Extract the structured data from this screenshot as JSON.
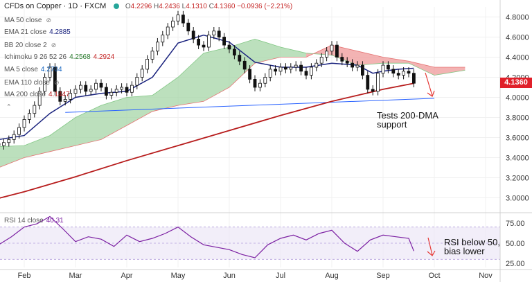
{
  "header": {
    "title": "CFDs on Copper · 1D · FXCM",
    "open_label": "O",
    "open": "4.2296",
    "high_label": "H",
    "high": "4.2436",
    "low_label": "L",
    "low": "4.1310",
    "close_label": "C",
    "close": "4.1360",
    "change": "−0.0936 (−2.21%)"
  },
  "indicators": [
    {
      "label": "MA 50 close",
      "value": "",
      "hidden": true,
      "color": "#9e9e9e"
    },
    {
      "label": "EMA 21 close",
      "value": "4.2885",
      "color": "#1a237e"
    },
    {
      "label": "BB 20 close 2",
      "value": "",
      "hidden": true,
      "color": "#9e9e9e"
    },
    {
      "label": "Ichimoku 9 26 52 26",
      "value": "4.2568",
      "value2": "4.2924",
      "color": "#2e7d32",
      "color2": "#c62828"
    },
    {
      "label": "MA 5 close",
      "value": "4.2704",
      "color": "#1565c0"
    },
    {
      "label": "EMA 110 close",
      "value": "",
      "hidden": true,
      "color": "#9e9e9e"
    },
    {
      "label": "MA 200 close",
      "value": "4.1447",
      "color": "#b71c1c"
    }
  ],
  "rsi_legend": {
    "label": "RSI 14 close",
    "value": "40.31",
    "color": "#7b1fa2"
  },
  "price_tag": "4.1360",
  "annotations": {
    "tests_line1": "Tests 200-DMA",
    "tests_line2": "support",
    "rsi_line1": "RSI below 50,",
    "rsi_line2": "bias lower"
  },
  "colors": {
    "up": "#26a69a",
    "down": "#ef5350",
    "candle_body": "#111111",
    "ma200": "#b71c1c",
    "ema21": "#1a237e",
    "trendline": "#2962ff",
    "cloud_bull": "#a5d6a7",
    "cloud_bear": "#ef9a9a",
    "rsi": "#7b1fa2",
    "rsi_band": "#ede7f6",
    "arrow": "#e53935",
    "price_tag": "#e0202a"
  },
  "chart_data": {
    "type": "line",
    "title": "CFDs on Copper · 1D · FXCM",
    "y_axis": {
      "ticks": [
        3.0,
        3.2,
        3.4,
        3.6,
        3.8,
        4.0,
        4.2,
        4.4,
        4.6,
        4.8
      ],
      "range": [
        2.9,
        4.9
      ]
    },
    "x_axis": {
      "labels": [
        "Feb",
        "Mar",
        "Apr",
        "May",
        "Jun",
        "Jul",
        "Aug",
        "Sep",
        "Oct",
        "Nov"
      ]
    },
    "x_positions_months": [
      1,
      2,
      3,
      4,
      5,
      6,
      7,
      8,
      9,
      10
    ],
    "series": [
      {
        "name": "Close",
        "x": [
          0.0,
          0.1,
          0.2,
          0.3,
          0.4,
          0.5,
          0.6,
          0.7,
          0.8,
          0.9,
          1.0,
          1.1,
          1.2,
          1.3,
          1.4,
          1.5,
          1.6,
          1.7,
          1.8,
          1.9,
          2.0,
          2.1,
          2.2,
          2.3,
          2.4,
          2.5,
          2.6,
          2.7,
          2.8,
          2.9,
          3.0,
          3.1,
          3.2,
          3.3,
          3.4,
          3.5,
          3.6,
          3.7,
          3.8,
          3.9,
          4.0,
          4.1,
          4.2,
          4.3,
          4.4,
          4.5,
          4.6,
          4.7,
          4.8,
          4.9,
          5.0,
          5.1,
          5.2,
          5.3,
          5.4,
          5.5,
          5.6,
          5.7,
          5.8,
          5.9,
          6.0,
          6.1,
          6.2,
          6.3,
          6.4,
          6.5,
          6.6,
          6.7,
          6.8,
          6.9,
          7.0,
          7.1,
          7.2,
          7.3,
          7.4,
          7.5,
          7.6,
          7.7,
          7.8,
          7.9,
          8.0,
          8.1,
          8.2,
          8.3,
          8.4,
          8.5,
          8.6
        ],
        "y": [
          3.62,
          3.64,
          3.6,
          3.56,
          3.54,
          3.52,
          3.55,
          3.58,
          3.63,
          3.7,
          3.78,
          3.84,
          3.92,
          4.06,
          4.2,
          4.3,
          4.06,
          3.96,
          3.98,
          4.04,
          4.08,
          4.12,
          4.06,
          4.08,
          4.14,
          4.1,
          4.02,
          4.05,
          4.08,
          4.1,
          4.05,
          4.12,
          4.2,
          4.28,
          4.38,
          4.46,
          4.55,
          4.62,
          4.7,
          4.76,
          4.82,
          4.74,
          4.66,
          4.58,
          4.52,
          4.5,
          4.62,
          4.66,
          4.6,
          4.52,
          4.48,
          4.42,
          4.36,
          4.28,
          4.18,
          4.1,
          4.14,
          4.2,
          4.28,
          4.26,
          4.3,
          4.28,
          4.3,
          4.32,
          4.26,
          4.22,
          4.3,
          4.34,
          4.4,
          4.46,
          4.52,
          4.4,
          4.36,
          4.34,
          4.3,
          4.32,
          4.22,
          4.08,
          4.06,
          4.24,
          4.32,
          4.28,
          4.24,
          4.22,
          4.26,
          4.24,
          4.14
        ]
      },
      {
        "name": "EMA 21",
        "x": [
          0.0,
          0.5,
          1.0,
          1.5,
          2.0,
          2.5,
          3.0,
          3.5,
          4.0,
          4.5,
          5.0,
          5.5,
          6.0,
          6.5,
          7.0,
          7.5,
          7.8,
          8.0,
          8.3,
          8.6
        ],
        "y": [
          3.62,
          3.58,
          3.62,
          3.84,
          4.0,
          4.04,
          4.06,
          4.2,
          4.54,
          4.62,
          4.55,
          4.35,
          4.3,
          4.3,
          4.34,
          4.32,
          4.24,
          4.26,
          4.28,
          4.29
        ]
      },
      {
        "name": "MA 200",
        "x": [
          0.0,
          1.0,
          2.0,
          3.0,
          4.0,
          5.0,
          6.0,
          7.0,
          7.5,
          8.0,
          8.6
        ],
        "y": [
          2.93,
          3.06,
          3.21,
          3.37,
          3.52,
          3.67,
          3.82,
          3.96,
          4.02,
          4.08,
          4.14
        ]
      },
      {
        "name": "Trendline",
        "x": [
          1.8,
          9.0
        ],
        "y": [
          3.85,
          3.99
        ]
      },
      {
        "name": "Senkou A",
        "x": [
          0.0,
          1.0,
          1.5,
          2.0,
          2.5,
          3.0,
          3.5,
          4.0,
          4.5,
          5.0,
          5.5,
          6.0,
          6.5,
          7.0,
          7.5,
          8.0,
          8.5,
          9.0,
          9.6
        ],
        "y": [
          3.5,
          3.52,
          3.62,
          3.8,
          3.92,
          4.0,
          4.02,
          4.2,
          4.44,
          4.5,
          4.58,
          4.5,
          4.44,
          4.42,
          4.32,
          4.34,
          4.34,
          4.22,
          4.27
        ]
      },
      {
        "name": "Senkou B",
        "x": [
          0.0,
          1.0,
          1.5,
          2.0,
          2.5,
          3.0,
          3.5,
          4.0,
          4.5,
          5.0,
          5.5,
          6.0,
          6.5,
          7.0,
          7.5,
          8.0,
          8.5,
          9.0,
          9.6
        ],
        "y": [
          3.2,
          3.4,
          3.46,
          3.52,
          3.58,
          3.72,
          3.86,
          3.92,
          3.96,
          4.1,
          4.34,
          4.4,
          4.4,
          4.52,
          4.46,
          4.4,
          4.36,
          4.3,
          4.3
        ]
      }
    ],
    "rsi": {
      "y_axis": {
        "ticks": [
          25.0,
          50.0,
          75.0
        ],
        "range": [
          20.0,
          80.0
        ],
        "band": [
          30.0,
          70.0
        ]
      },
      "x": [
        0.0,
        0.25,
        0.5,
        0.75,
        1.0,
        1.25,
        1.5,
        1.75,
        2.0,
        2.25,
        2.5,
        2.75,
        3.0,
        3.25,
        3.5,
        3.75,
        4.0,
        4.25,
        4.5,
        4.75,
        5.0,
        5.25,
        5.5,
        5.75,
        6.0,
        6.25,
        6.5,
        6.75,
        7.0,
        7.25,
        7.5,
        7.75,
        8.0,
        8.25,
        8.5,
        8.6
      ],
      "y": [
        62,
        55,
        48,
        58,
        70,
        74,
        83,
        68,
        52,
        58,
        55,
        46,
        60,
        52,
        56,
        62,
        70,
        58,
        48,
        45,
        42,
        36,
        32,
        48,
        56,
        60,
        54,
        62,
        66,
        50,
        40,
        54,
        60,
        58,
        56,
        40.31
      ]
    }
  }
}
